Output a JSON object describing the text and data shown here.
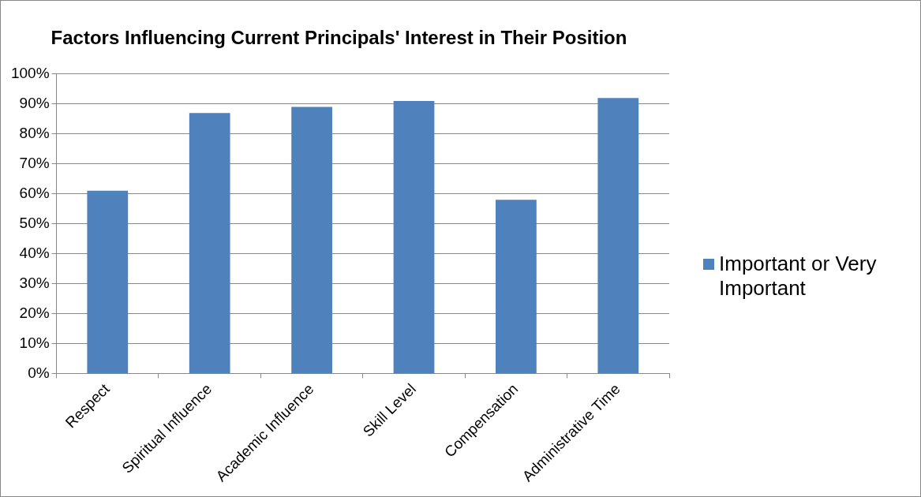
{
  "chart_data": {
    "type": "bar",
    "title": "Factors Influencing Current Principals' Interest in Their Position",
    "categories": [
      "Respect",
      "Spiritual Influence",
      "Academic Influence",
      "Skill Level",
      "Compensation",
      "Administrative Time"
    ],
    "series": [
      {
        "name": "Important or Very Important",
        "color": "#4f81bd",
        "values": [
          61,
          87,
          89,
          91,
          58,
          92
        ]
      }
    ],
    "ylim": [
      0,
      100
    ],
    "yticks": [
      {
        "value": 0,
        "label": "0%"
      },
      {
        "value": 10,
        "label": "10%"
      },
      {
        "value": 20,
        "label": "20%"
      },
      {
        "value": 30,
        "label": "30%"
      },
      {
        "value": 40,
        "label": "40%"
      },
      {
        "value": 50,
        "label": "50%"
      },
      {
        "value": 60,
        "label": "60%"
      },
      {
        "value": 70,
        "label": "70%"
      },
      {
        "value": 80,
        "label": "80%"
      },
      {
        "value": 90,
        "label": "90%"
      },
      {
        "value": 100,
        "label": "100%"
      }
    ],
    "grid": "y",
    "legend": "right"
  }
}
